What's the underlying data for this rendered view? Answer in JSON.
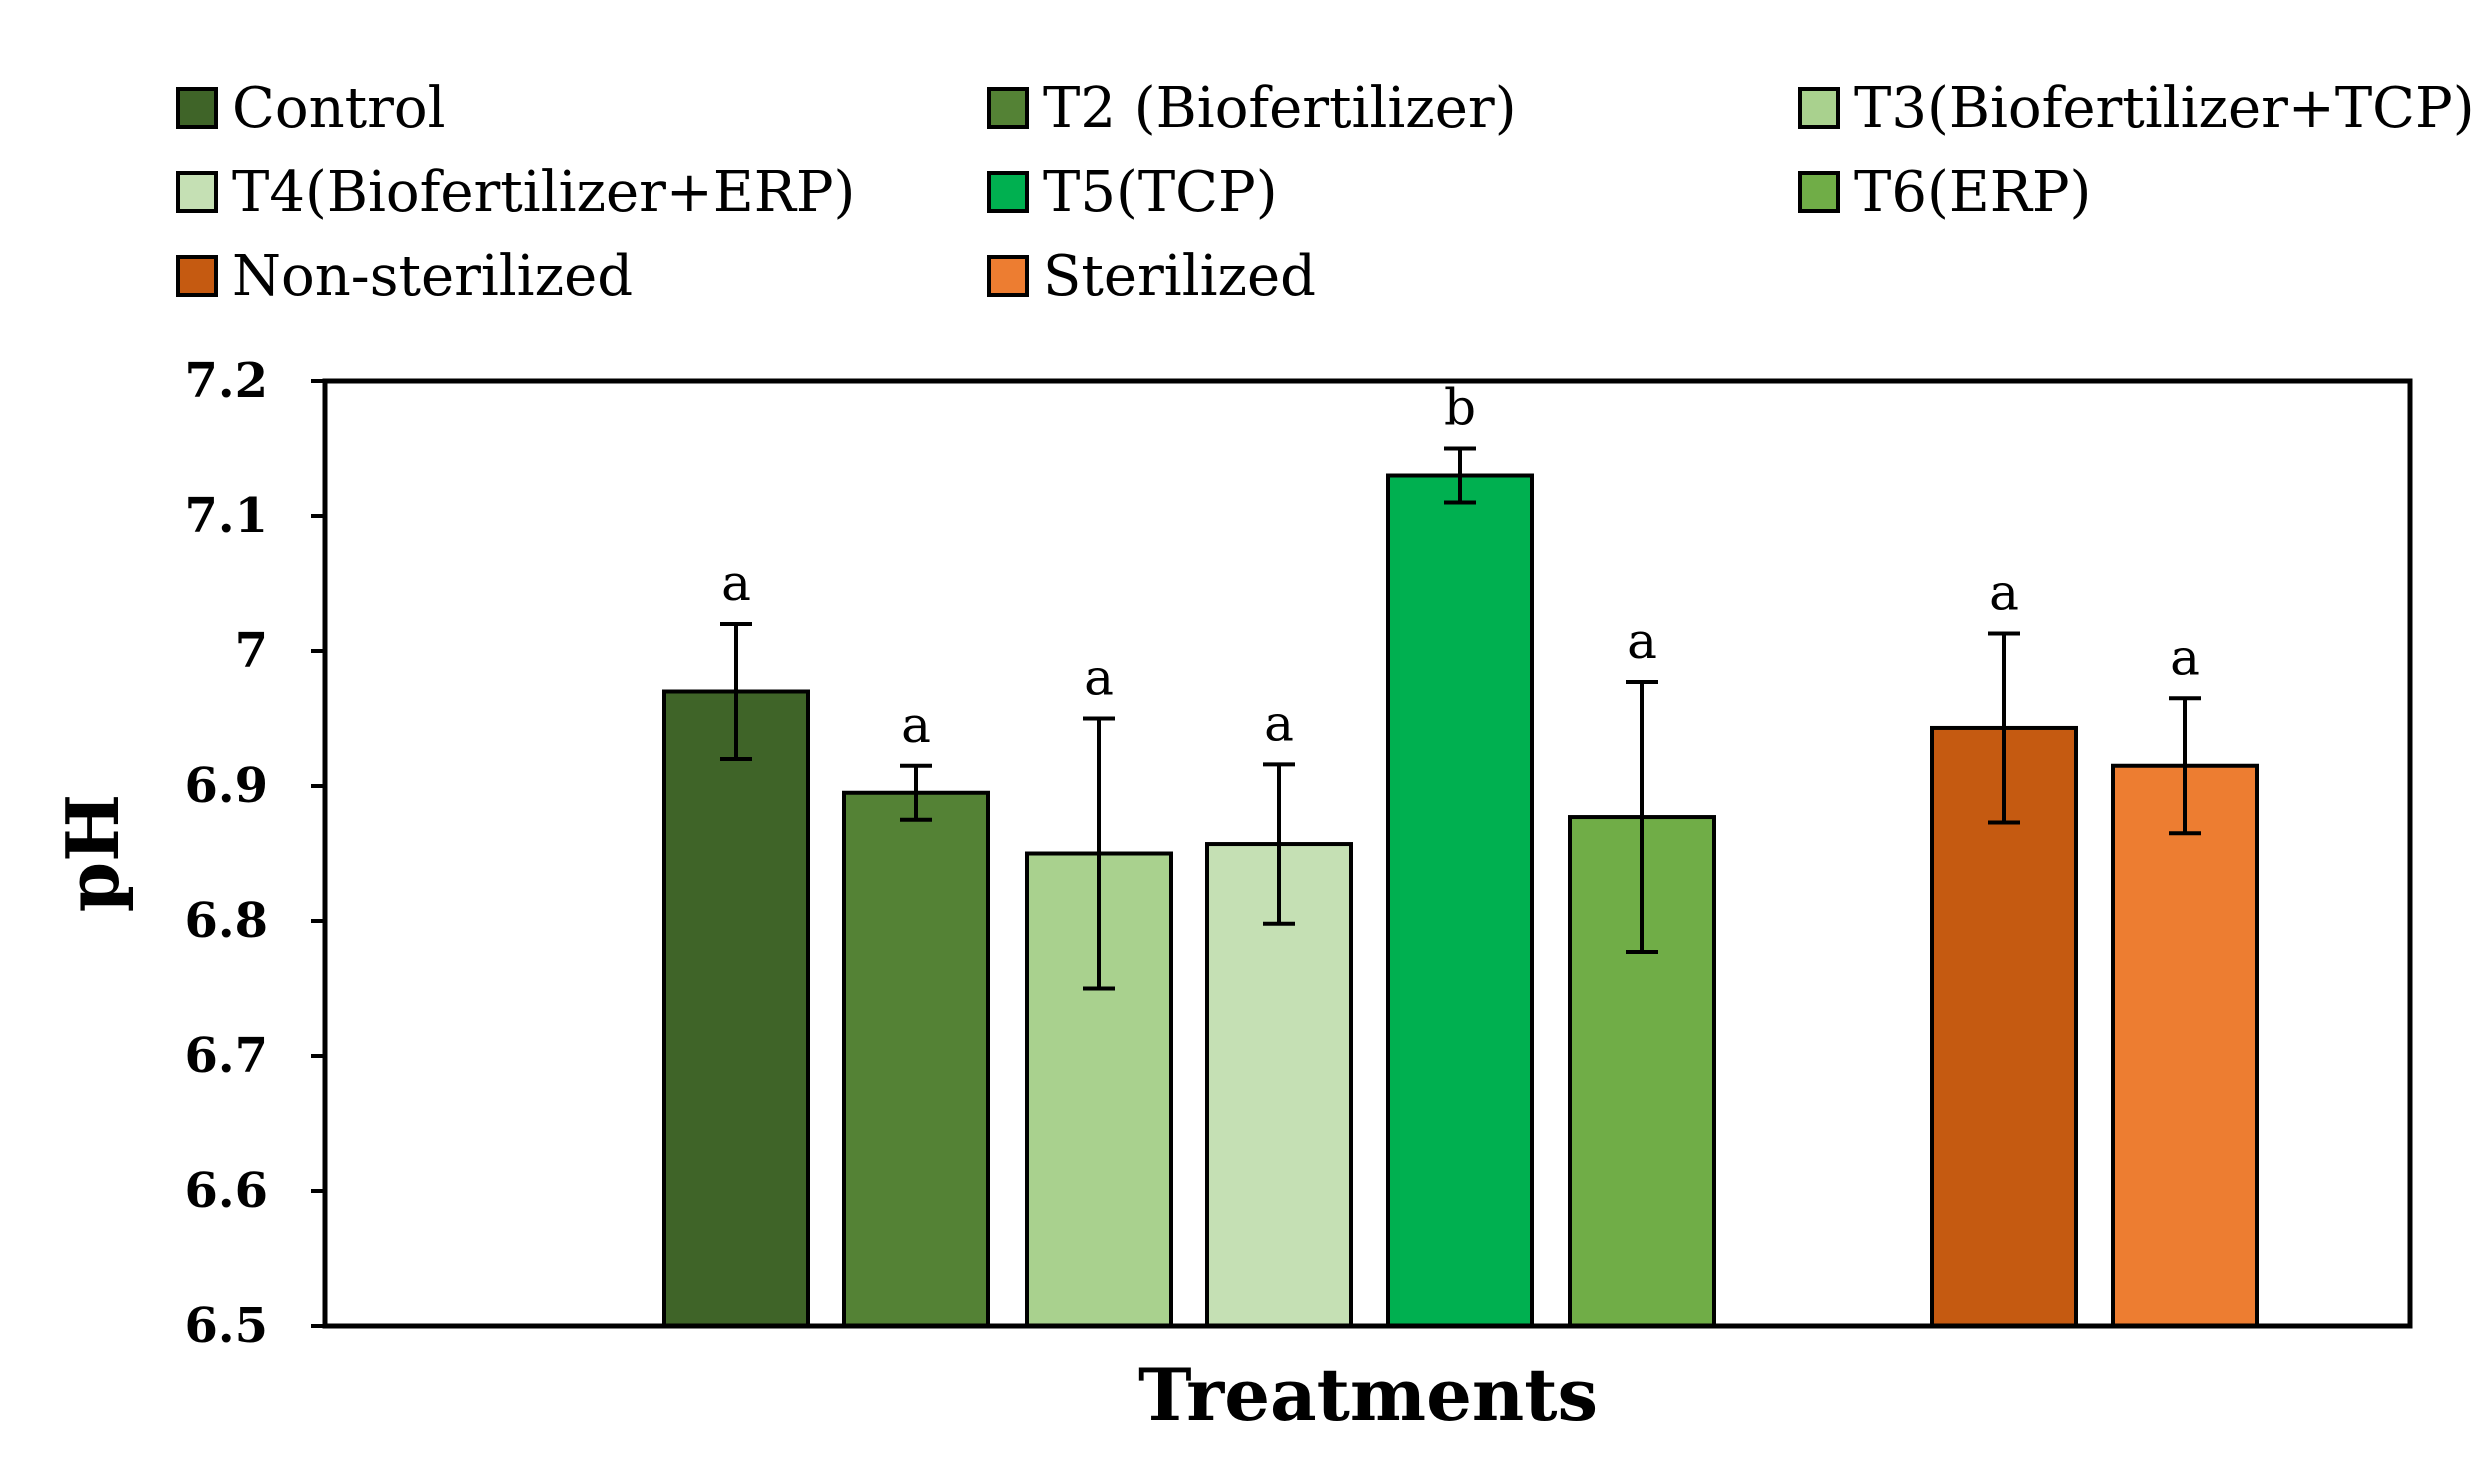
{
  "chart_data": {
    "type": "bar",
    "title": "",
    "xlabel": "Treatments",
    "ylabel": "pH",
    "ylim": [
      6.5,
      7.2
    ],
    "y_ticks": [
      "6.5",
      "6.6",
      "6.7",
      "6.8",
      "6.9",
      "7",
      "7.1",
      "7.2"
    ],
    "grid": false,
    "legend_position": "top",
    "series": [
      {
        "name": "Control",
        "value": 6.97,
        "error": 0.05,
        "significance": "a",
        "color": "#3f6428"
      },
      {
        "name": "T2 (Biofertilizer)",
        "value": 6.895,
        "error": 0.02,
        "significance": "a",
        "color": "#548235"
      },
      {
        "name": "T3(Biofertilizer+TCP)",
        "value": 6.85,
        "error": 0.1,
        "significance": "a",
        "color": "#a9d18e"
      },
      {
        "name": "T4(Biofertilizer+ERP)",
        "value": 6.857,
        "error": 0.059,
        "significance": "a",
        "color": "#c5e0b4"
      },
      {
        "name": "T5(TCP)",
        "value": 7.13,
        "error": 0.02,
        "significance": "b",
        "color": "#00b050"
      },
      {
        "name": "T6(ERP)",
        "value": 6.877,
        "error": 0.1,
        "significance": "a",
        "color": "#70ad47"
      },
      {
        "name": "Non-sterilized",
        "value": 6.943,
        "error": 0.07,
        "significance": "a",
        "color": "#c55a11"
      },
      {
        "name": "Sterilized",
        "value": 6.915,
        "error": 0.05,
        "significance": "a",
        "color": "#ed7d31"
      }
    ]
  }
}
